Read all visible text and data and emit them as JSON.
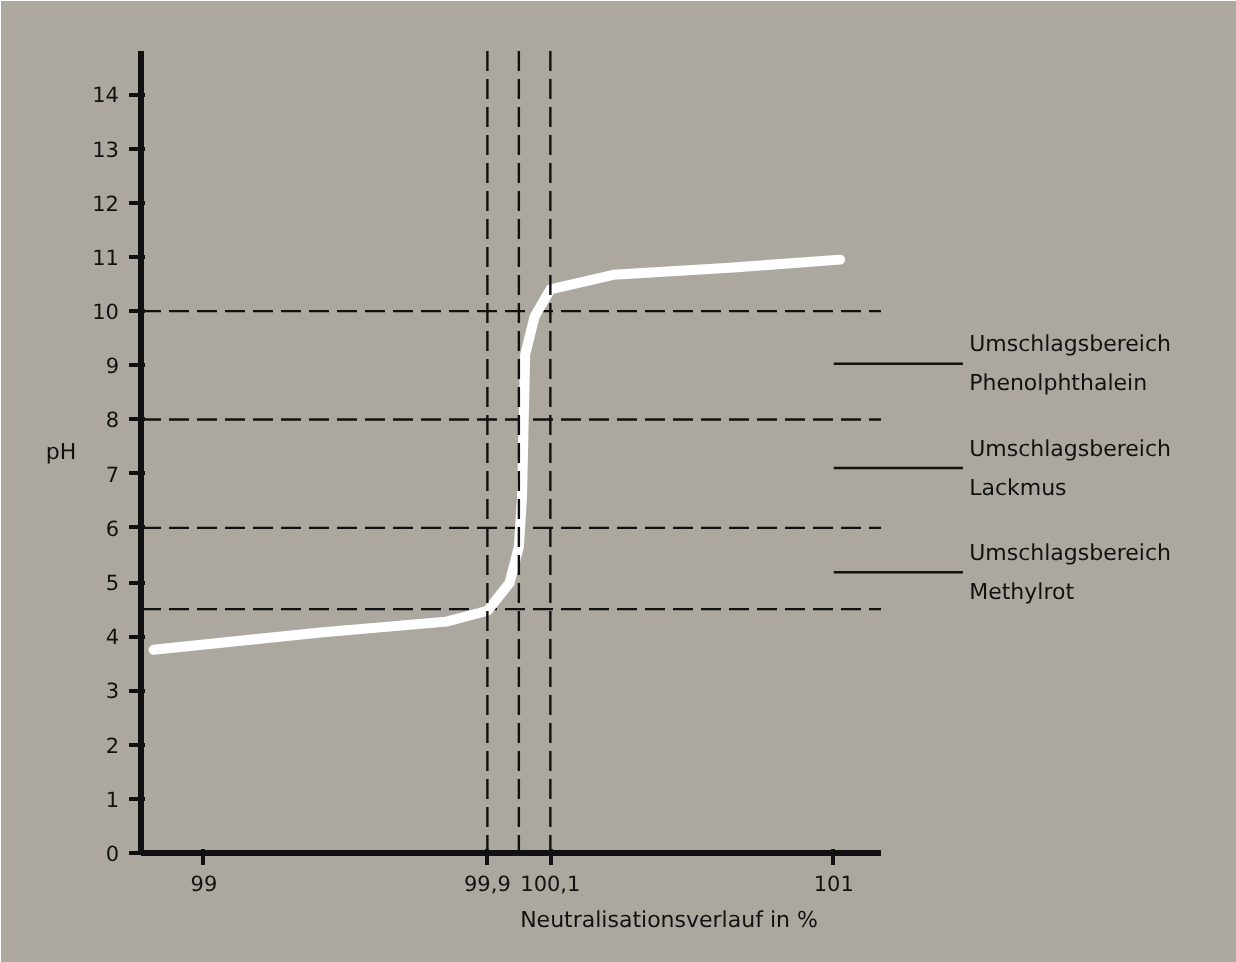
{
  "chart_data": {
    "type": "line",
    "xlabel": "Neutralisationsverlauf in %",
    "ylabel": "pH",
    "x": [
      98.84,
      99.37,
      99.77,
      99.9,
      99.97,
      100.0,
      100.01,
      100.015,
      100.02,
      100.05,
      100.1,
      100.3,
      100.67,
      101.02
    ],
    "series": [
      {
        "color": "#ffffff",
        "values": [
          3.75,
          4.07,
          4.27,
          4.47,
          4.98,
          5.65,
          6.56,
          7.9,
          9.2,
          9.9,
          10.4,
          10.67,
          10.8,
          10.95
        ]
      }
    ],
    "xlim": [
      98.8,
      101.15
    ],
    "ylim": [
      0,
      14.8
    ],
    "xticks": [
      99,
      {
        "value": 99.9,
        "label": "99,9"
      },
      {
        "value": 100.1,
        "label": "100,1"
      },
      101
    ],
    "yticks": [
      0,
      1,
      2,
      3,
      4,
      5,
      6,
      7,
      8,
      9,
      10,
      11,
      12,
      13,
      14
    ],
    "ref_lines": [
      {
        "axis": "y",
        "value": 10,
        "line_style": "dashed",
        "color": "#111111"
      },
      {
        "axis": "y",
        "value": 8,
        "line_style": "dashed",
        "color": "#111111"
      },
      {
        "axis": "y",
        "value": 6,
        "line_style": "dashed",
        "color": "#111111"
      },
      {
        "axis": "y",
        "value": 4.5,
        "line_style": "dashed",
        "color": "#111111"
      },
      {
        "axis": "x",
        "value": 99.9,
        "line_style": "dashed",
        "color": "#111111"
      },
      {
        "axis": "x",
        "value": 100.0,
        "line_style": "dashed",
        "color": "#111111"
      },
      {
        "axis": "x",
        "value": 100.1,
        "line_style": "dashed",
        "color": "#111111"
      }
    ],
    "annotations": [
      "Umschlagsbereich\nPhenolphthalein",
      "Umschlagsbereich\nLackmus",
      "Umschlagsbereich\nMethylrot"
    ],
    "grid": false,
    "marker": "none",
    "line_style": "solid"
  }
}
